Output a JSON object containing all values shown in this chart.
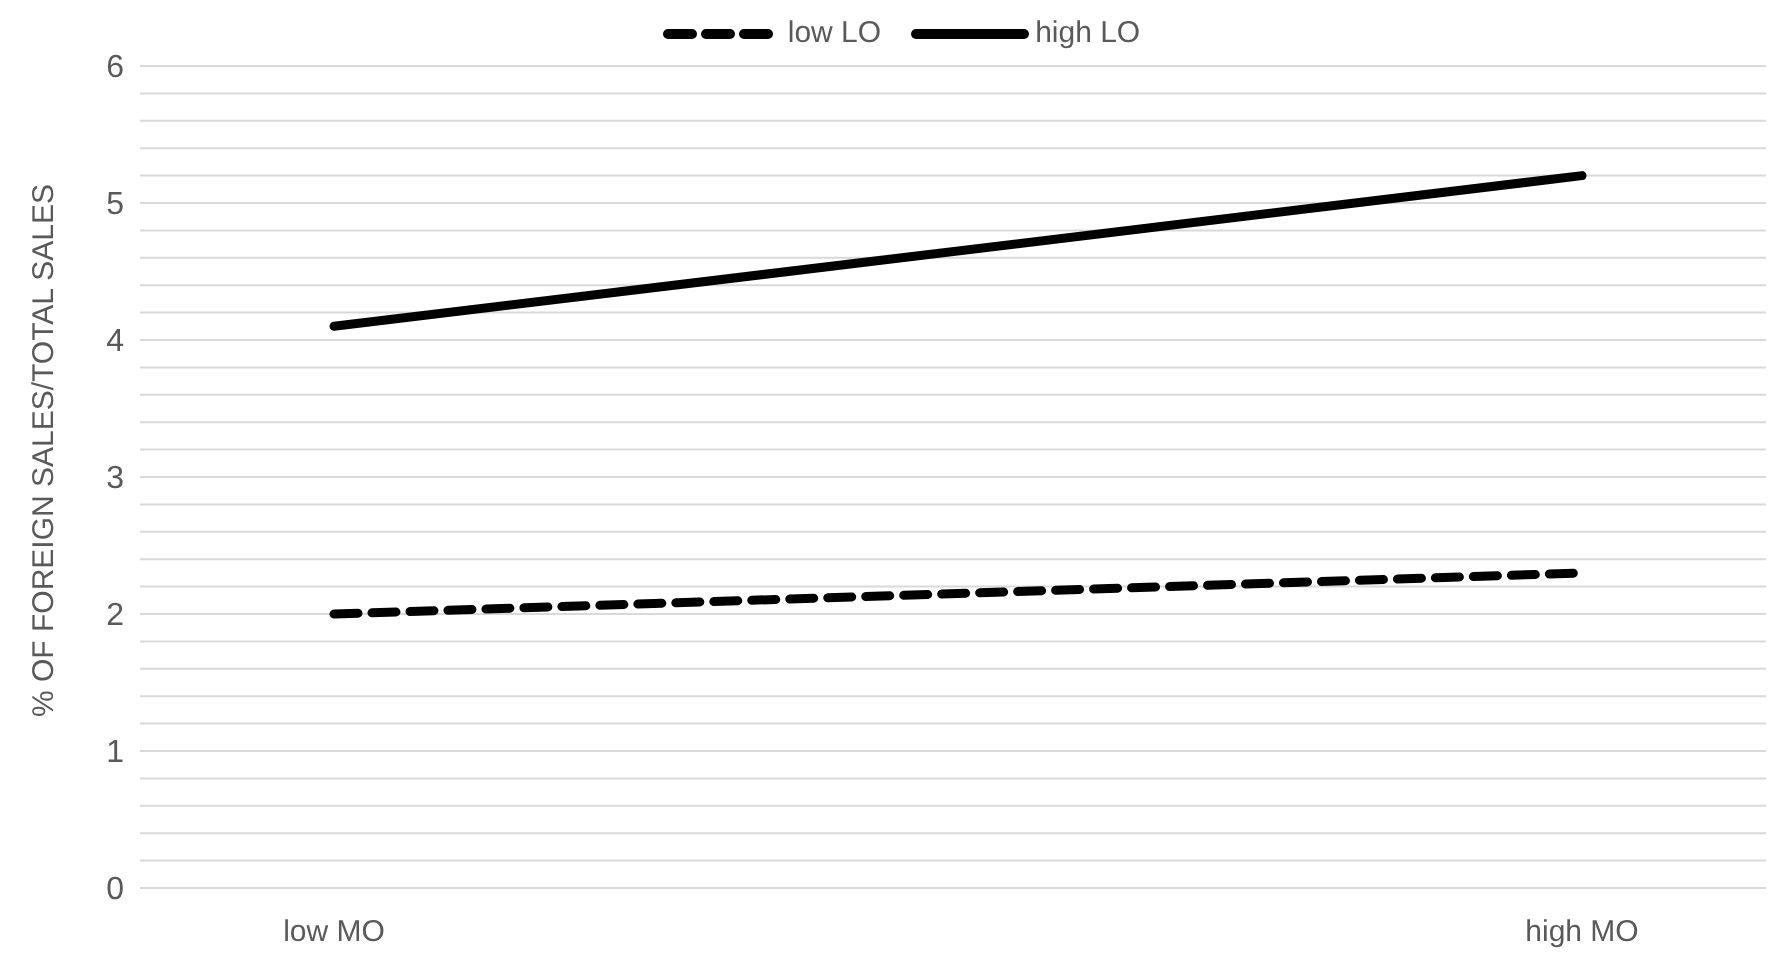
{
  "chart_data": {
    "type": "line",
    "ylabel": "% OF FOREIGN SALES/TOTAL SALES",
    "categories": [
      "low MO",
      "high MO"
    ],
    "series": [
      {
        "name": "low LO",
        "color": "#000000",
        "line_style": "dashed",
        "values": [
          2.0,
          2.3
        ]
      },
      {
        "name": "high LO",
        "color": "#000000",
        "line_style": "solid",
        "values": [
          4.1,
          5.2
        ]
      }
    ],
    "ylim": [
      0,
      6
    ],
    "yticks": [
      0,
      {
        "value": 0.2,
        "label": null
      },
      {
        "value": 0.4,
        "label": null
      },
      {
        "value": 0.6,
        "label": null
      },
      {
        "value": 0.8,
        "label": null
      },
      1,
      {
        "value": 1.2,
        "label": null
      },
      {
        "value": 1.4,
        "label": null
      },
      {
        "value": 1.6,
        "label": null
      },
      {
        "value": 1.8,
        "label": null
      },
      2,
      {
        "value": 2.2,
        "label": null
      },
      {
        "value": 2.4,
        "label": null
      },
      {
        "value": 2.6,
        "label": null
      },
      {
        "value": 2.8,
        "label": null
      },
      3,
      {
        "value": 3.2,
        "label": null
      },
      {
        "value": 3.4,
        "label": null
      },
      {
        "value": 3.6,
        "label": null
      },
      {
        "value": 3.8,
        "label": null
      },
      4,
      {
        "value": 4.2,
        "label": null
      },
      {
        "value": 4.4,
        "label": null
      },
      {
        "value": 4.6,
        "label": null
      },
      {
        "value": 4.8,
        "label": null
      },
      5,
      {
        "value": 5.2,
        "label": null
      },
      {
        "value": 5.4,
        "label": null
      },
      {
        "value": 5.6,
        "label": null
      },
      {
        "value": 5.8,
        "label": null
      },
      6
    ],
    "grid": "y",
    "legend": "top",
    "marker": "none"
  }
}
